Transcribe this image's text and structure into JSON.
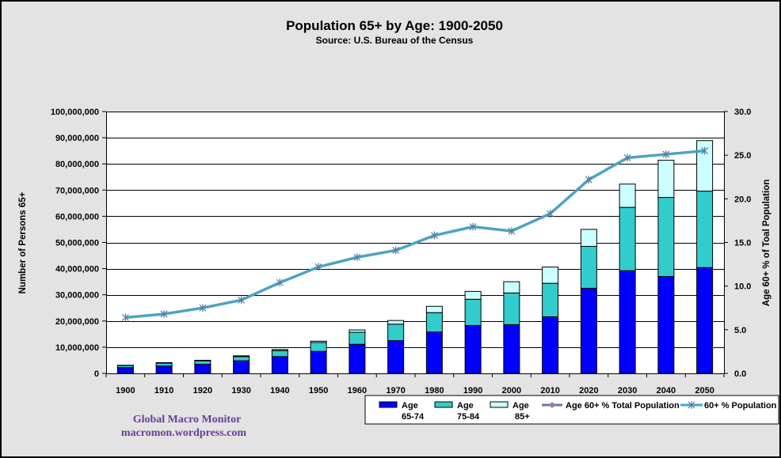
{
  "chart_data": {
    "type": "bar",
    "stacked": true,
    "title": "Population 65+ by Age: 1900-2050",
    "subtitle": "Source: U.S. Bureau of the Census",
    "categories": [
      "1900",
      "1910",
      "1920",
      "1930",
      "1940",
      "1950",
      "1960",
      "1970",
      "1980",
      "1990",
      "2000",
      "2010",
      "2020",
      "2030",
      "2040",
      "2050"
    ],
    "ylabel": "Number of Persons 65+",
    "ylabel_right": "Age 60+  % of Toal Population",
    "ylim": [
      0,
      100000000
    ],
    "ylim_right": [
      0,
      30
    ],
    "yticks": [
      "0",
      "10,000,000",
      "20,000,000",
      "30,000,000",
      "40,000,000",
      "50,000,000",
      "60,000,000",
      "70,000,000",
      "80,000,000",
      "90,000,000",
      "100,000,000"
    ],
    "yticks_right": [
      "0.0",
      "5.0",
      "10.0",
      "15.0",
      "20.0",
      "25.0",
      "30.0"
    ],
    "grid": true,
    "series": [
      {
        "name": "Age 65-74",
        "legend_line1": "Age",
        "legend_line2": "65-74",
        "type": "bar",
        "color": "#0000ff",
        "values": [
          2200000,
          2800000,
          3500000,
          4800000,
          6400000,
          8400000,
          11100000,
          12500000,
          15800000,
          18300000,
          18600000,
          21600000,
          32500000,
          39200000,
          37000000,
          40400000
        ]
      },
      {
        "name": "Age 75-84",
        "legend_line1": "Age",
        "legend_line2": "75-84",
        "type": "bar",
        "color": "#33cccc",
        "values": [
          800000,
          1100000,
          1300000,
          1600000,
          2300000,
          3400000,
          4600000,
          6300000,
          7400000,
          10000000,
          12100000,
          12800000,
          16000000,
          24200000,
          30200000,
          29200000
        ]
      },
      {
        "name": "Age 85+",
        "legend_line1": "Age",
        "legend_line2": "85+",
        "type": "bar",
        "color": "#ccffff",
        "values": [
          100000,
          200000,
          200000,
          300000,
          400000,
          500000,
          900000,
          1400000,
          2400000,
          3000000,
          4300000,
          6200000,
          6500000,
          8900000,
          14200000,
          19300000
        ]
      },
      {
        "name": "Age 60+ % Total Population",
        "type": "line",
        "axis": "right",
        "color": "#6677aa",
        "marker": "diamond",
        "values": []
      },
      {
        "name": "60+ % Population",
        "type": "line",
        "axis": "right",
        "color": "#4ba3c3",
        "marker": "star",
        "values": [
          6.4,
          6.8,
          7.5,
          8.4,
          10.4,
          12.2,
          13.3,
          14.1,
          15.8,
          16.8,
          16.3,
          18.3,
          22.2,
          24.7,
          25.1,
          25.5
        ]
      }
    ],
    "legend": "bottom-right"
  },
  "watermark": {
    "line1": "Global Macro Monitor",
    "line2": "macromon.wordpress.com"
  }
}
